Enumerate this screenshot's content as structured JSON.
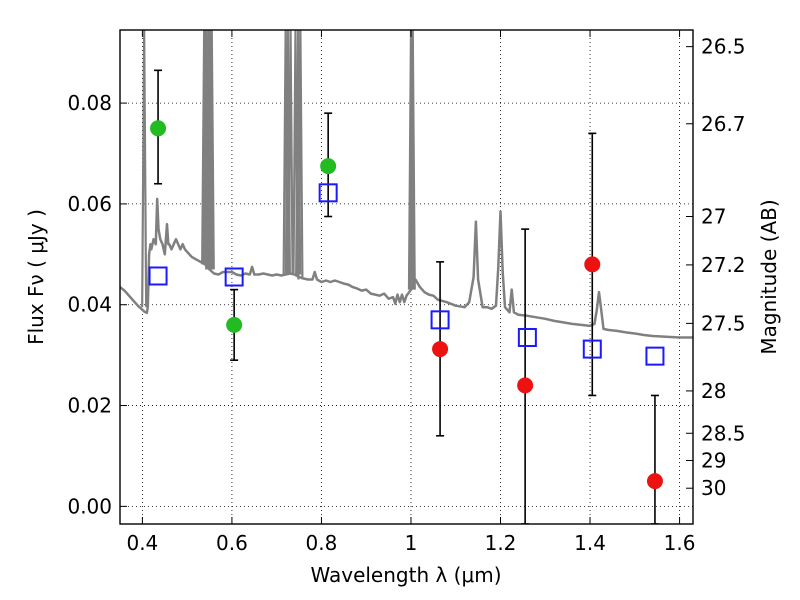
{
  "chart_data": {
    "type": "scatter",
    "title": "",
    "xlabel": "Wavelength  λ (μm)",
    "ylabel": "Flux  Fν  ( μJy )",
    "y2label": "Magnitude (AB)",
    "xlim": [
      0.35,
      1.63
    ],
    "ylim": [
      -0.0035,
      0.0945
    ],
    "grid": true,
    "x_ticks": [
      0.4,
      0.6,
      0.8,
      1.0,
      1.2,
      1.4,
      1.6
    ],
    "x_tick_labels": [
      "0.4",
      "0.6",
      "0.8",
      "1",
      "1.2",
      "1.4",
      "1.6"
    ],
    "y_ticks": [
      0.0,
      0.02,
      0.04,
      0.06,
      0.08
    ],
    "y_tick_labels": [
      "0.00",
      "0.02",
      "0.04",
      "0.06",
      "0.08"
    ],
    "y2_ticks": [
      {
        "label": "26.5",
        "flux": 0.0912
      },
      {
        "label": "26.7",
        "flux": 0.0759
      },
      {
        "label": "27",
        "flux": 0.0575
      },
      {
        "label": "27.2",
        "flux": 0.0479
      },
      {
        "label": "27.5",
        "flux": 0.0363
      },
      {
        "label": "28",
        "flux": 0.0229
      },
      {
        "label": "28.5",
        "flux": 0.0145
      },
      {
        "label": "29",
        "flux": 0.0091
      },
      {
        "label": "30",
        "flux": 0.0036
      }
    ],
    "colors": {
      "spectrum": "#808080",
      "green": "#22bb22",
      "red": "#ee1111",
      "model": "#1a1aff",
      "errorbar": "#000000"
    },
    "series": [
      {
        "marker": "circle",
        "color": "green",
        "points": [
          {
            "x": 0.435,
            "y": 0.075,
            "yerr_low": 0.064,
            "yerr_high": 0.0865
          },
          {
            "x": 0.605,
            "y": 0.036,
            "yerr_low": 0.029,
            "yerr_high": 0.043
          },
          {
            "x": 0.815,
            "y": 0.0675,
            "yerr_low": 0.0575,
            "yerr_high": 0.078
          }
        ]
      },
      {
        "marker": "circle",
        "color": "red",
        "points": [
          {
            "x": 1.065,
            "y": 0.0312,
            "yerr_low": 0.014,
            "yerr_high": 0.0485
          },
          {
            "x": 1.255,
            "y": 0.024,
            "yerr_low": -0.0035,
            "yerr_high": 0.055
          },
          {
            "x": 1.405,
            "y": 0.048,
            "yerr_low": 0.022,
            "yerr_high": 0.074
          },
          {
            "x": 1.545,
            "y": 0.005,
            "yerr_low": -0.0035,
            "yerr_high": 0.022
          }
        ]
      },
      {
        "marker": "open-square",
        "color": "model",
        "points": [
          {
            "x": 0.435,
            "y": 0.0457
          },
          {
            "x": 0.605,
            "y": 0.0455
          },
          {
            "x": 0.815,
            "y": 0.0622
          },
          {
            "x": 1.065,
            "y": 0.037
          },
          {
            "x": 1.26,
            "y": 0.0335
          },
          {
            "x": 1.405,
            "y": 0.0312
          },
          {
            "x": 1.545,
            "y": 0.0298
          }
        ]
      }
    ],
    "spectrum": [
      [
        0.35,
        0.0435
      ],
      [
        0.36,
        0.0428
      ],
      [
        0.37,
        0.0418
      ],
      [
        0.38,
        0.0408
      ],
      [
        0.39,
        0.0398
      ],
      [
        0.4,
        0.039
      ],
      [
        0.405,
        0.0386
      ],
      [
        0.41,
        0.0384
      ],
      [
        0.412,
        0.0395
      ],
      [
        0.415,
        0.05
      ],
      [
        0.418,
        0.052
      ],
      [
        0.42,
        0.051
      ],
      [
        0.425,
        0.053
      ],
      [
        0.43,
        0.052
      ],
      [
        0.433,
        0.061
      ],
      [
        0.436,
        0.055
      ],
      [
        0.44,
        0.053
      ],
      [
        0.445,
        0.052
      ],
      [
        0.45,
        0.05
      ],
      [
        0.455,
        0.056
      ],
      [
        0.458,
        0.052
      ],
      [
        0.46,
        0.052
      ],
      [
        0.465,
        0.051
      ],
      [
        0.47,
        0.052
      ],
      [
        0.475,
        0.053
      ],
      [
        0.48,
        0.052
      ],
      [
        0.485,
        0.051
      ],
      [
        0.49,
        0.052
      ],
      [
        0.495,
        0.051
      ],
      [
        0.5,
        0.0505
      ],
      [
        0.51,
        0.0495
      ],
      [
        0.52,
        0.049
      ],
      [
        0.53,
        0.0485
      ],
      [
        0.54,
        0.048
      ],
      [
        0.55,
        0.047
      ],
      [
        0.56,
        0.0462
      ],
      [
        0.57,
        0.046
      ],
      [
        0.58,
        0.0465
      ],
      [
        0.59,
        0.0465
      ],
      [
        0.6,
        0.0465
      ],
      [
        0.61,
        0.046
      ],
      [
        0.62,
        0.0458
      ],
      [
        0.63,
        0.0462
      ],
      [
        0.64,
        0.046
      ],
      [
        0.645,
        0.0475
      ],
      [
        0.65,
        0.046
      ],
      [
        0.66,
        0.046
      ],
      [
        0.67,
        0.0462
      ],
      [
        0.68,
        0.046
      ],
      [
        0.69,
        0.0458
      ],
      [
        0.7,
        0.046
      ],
      [
        0.71,
        0.0458
      ],
      [
        0.72,
        0.046
      ],
      [
        0.73,
        0.0462
      ],
      [
        0.74,
        0.046
      ],
      [
        0.75,
        0.0455
      ],
      [
        0.76,
        0.0452
      ],
      [
        0.77,
        0.045
      ],
      [
        0.78,
        0.045
      ],
      [
        0.785,
        0.0465
      ],
      [
        0.79,
        0.045
      ],
      [
        0.8,
        0.0445
      ],
      [
        0.81,
        0.0448
      ],
      [
        0.82,
        0.0445
      ],
      [
        0.83,
        0.0448
      ],
      [
        0.84,
        0.0445
      ],
      [
        0.85,
        0.0442
      ],
      [
        0.86,
        0.044
      ],
      [
        0.87,
        0.0435
      ],
      [
        0.88,
        0.0432
      ],
      [
        0.89,
        0.0428
      ],
      [
        0.9,
        0.043
      ],
      [
        0.91,
        0.0422
      ],
      [
        0.92,
        0.042
      ],
      [
        0.93,
        0.0418
      ],
      [
        0.94,
        0.0422
      ],
      [
        0.95,
        0.0412
      ],
      [
        0.96,
        0.0415
      ],
      [
        0.965,
        0.0402
      ],
      [
        0.97,
        0.042
      ],
      [
        0.975,
        0.0405
      ],
      [
        0.98,
        0.042
      ],
      [
        0.985,
        0.0405
      ],
      [
        0.99,
        0.0418
      ],
      [
        1.0,
        0.043
      ],
      [
        1.01,
        0.045
      ],
      [
        1.02,
        0.0435
      ],
      [
        1.03,
        0.0425
      ],
      [
        1.04,
        0.042
      ],
      [
        1.05,
        0.0418
      ],
      [
        1.06,
        0.041
      ],
      [
        1.08,
        0.0405
      ],
      [
        1.1,
        0.0398
      ],
      [
        1.12,
        0.0395
      ],
      [
        1.13,
        0.0405
      ],
      [
        1.14,
        0.0455
      ],
      [
        1.145,
        0.0565
      ],
      [
        1.15,
        0.045
      ],
      [
        1.16,
        0.0395
      ],
      [
        1.17,
        0.0395
      ],
      [
        1.18,
        0.0392
      ],
      [
        1.19,
        0.0398
      ],
      [
        1.195,
        0.0475
      ],
      [
        1.2,
        0.0585
      ],
      [
        1.205,
        0.0465
      ],
      [
        1.21,
        0.0395
      ],
      [
        1.22,
        0.0385
      ],
      [
        1.225,
        0.043
      ],
      [
        1.23,
        0.0385
      ],
      [
        1.24,
        0.038
      ],
      [
        1.26,
        0.0378
      ],
      [
        1.28,
        0.0375
      ],
      [
        1.3,
        0.0372
      ],
      [
        1.32,
        0.0368
      ],
      [
        1.34,
        0.0365
      ],
      [
        1.36,
        0.0362
      ],
      [
        1.38,
        0.036
      ],
      [
        1.4,
        0.0358
      ],
      [
        1.41,
        0.0362
      ],
      [
        1.415,
        0.039
      ],
      [
        1.42,
        0.0425
      ],
      [
        1.425,
        0.039
      ],
      [
        1.43,
        0.0352
      ],
      [
        1.44,
        0.035
      ],
      [
        1.46,
        0.0348
      ],
      [
        1.48,
        0.0345
      ],
      [
        1.5,
        0.0343
      ],
      [
        1.52,
        0.034
      ],
      [
        1.54,
        0.0338
      ],
      [
        1.56,
        0.0337
      ],
      [
        1.58,
        0.0336
      ],
      [
        1.6,
        0.0335
      ],
      [
        1.63,
        0.0335
      ]
    ],
    "spectrum_spikes": [
      {
        "x": 0.404,
        "base": 0.0395,
        "peak": 0.0945
      },
      {
        "x": 0.538,
        "base": 0.048,
        "peak": 0.0945
      },
      {
        "x": 0.542,
        "base": 0.048,
        "peak": 0.0945
      },
      {
        "x": 0.547,
        "base": 0.047,
        "peak": 0.0945
      },
      {
        "x": 0.551,
        "base": 0.047,
        "peak": 0.0945
      },
      {
        "x": 0.555,
        "base": 0.047,
        "peak": 0.0945
      },
      {
        "x": 0.72,
        "base": 0.046,
        "peak": 0.0945
      },
      {
        "x": 0.725,
        "base": 0.046,
        "peak": 0.0945
      },
      {
        "x": 0.731,
        "base": 0.046,
        "peak": 0.0945
      },
      {
        "x": 0.742,
        "base": 0.046,
        "peak": 0.0945
      },
      {
        "x": 0.748,
        "base": 0.046,
        "peak": 0.0945
      },
      {
        "x": 0.753,
        "base": 0.045,
        "peak": 0.0945
      },
      {
        "x": 1.0,
        "base": 0.043,
        "peak": 0.0945
      },
      {
        "x": 1.004,
        "base": 0.043,
        "peak": 0.0945
      }
    ]
  }
}
